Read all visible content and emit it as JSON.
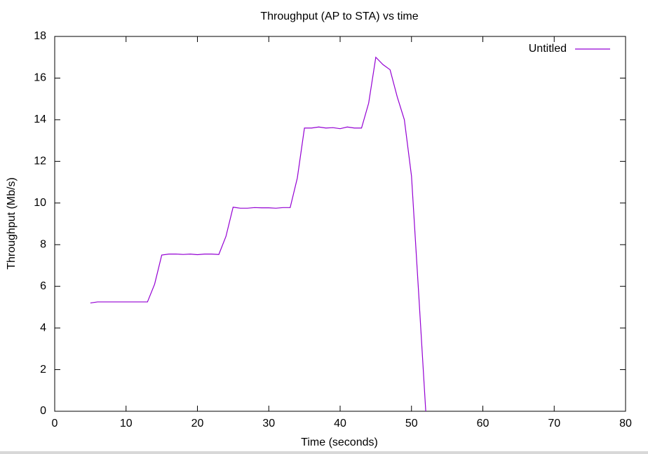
{
  "chart_data": {
    "type": "line",
    "title": "Throughput (AP to STA) vs time",
    "x_label": "Time (seconds)",
    "y_label": "Throughput (Mb/s)",
    "x": [
      5,
      6,
      7,
      8,
      9,
      10,
      11,
      12,
      13,
      14,
      15,
      16,
      17,
      18,
      19,
      20,
      21,
      22,
      23,
      24,
      25,
      26,
      27,
      28,
      29,
      30,
      31,
      32,
      33,
      34,
      35,
      36,
      37,
      38,
      39,
      40,
      41,
      42,
      43,
      44,
      45,
      46,
      47,
      48,
      49,
      50,
      51,
      52
    ],
    "series": [
      {
        "name": "Untitled",
        "color": "#9400d3",
        "values": [
          5.2,
          5.25,
          5.25,
          5.25,
          5.25,
          5.25,
          5.25,
          5.25,
          5.25,
          6.1,
          7.5,
          7.55,
          7.55,
          7.53,
          7.55,
          7.52,
          7.55,
          7.55,
          7.53,
          8.4,
          9.8,
          9.75,
          9.75,
          9.78,
          9.77,
          9.77,
          9.75,
          9.78,
          9.78,
          11.2,
          13.6,
          13.6,
          13.65,
          13.6,
          13.62,
          13.57,
          13.65,
          13.6,
          13.6,
          14.8,
          17.0,
          16.65,
          16.4,
          15.1,
          14.0,
          11.3,
          5.7,
          0
        ]
      }
    ],
    "xlim": [
      0,
      80
    ],
    "xticks": [
      0,
      10,
      20,
      30,
      40,
      50,
      60,
      70,
      80
    ],
    "ylim": [
      0,
      18
    ],
    "yticks": [
      0,
      2,
      4,
      6,
      8,
      10,
      12,
      14,
      16,
      18
    ],
    "legend": "top-right"
  }
}
